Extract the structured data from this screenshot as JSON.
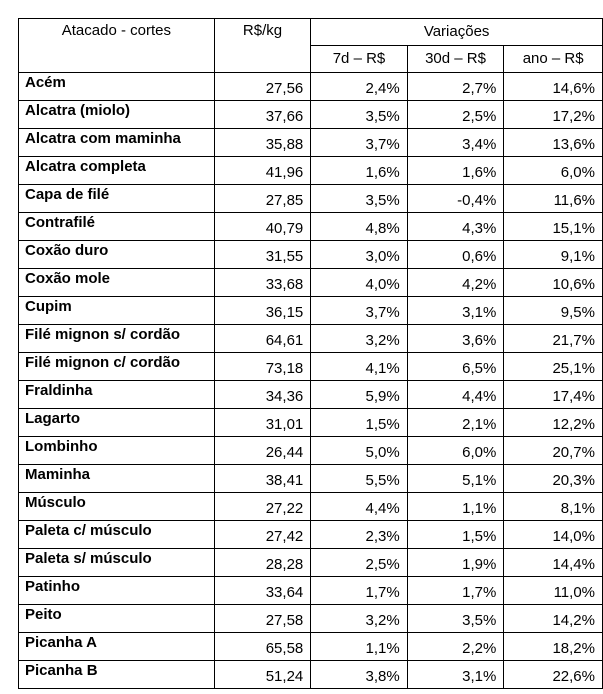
{
  "table": {
    "header": {
      "cut": "Atacado - cortes",
      "price": "R$/kg",
      "variations": "Variações",
      "sub": [
        "7d – R$",
        "30d – R$",
        "ano – R$"
      ]
    },
    "rows": [
      {
        "name": "Acém",
        "price": "27,56",
        "d7": "2,4%",
        "d30": "2,7%",
        "year": "14,6%"
      },
      {
        "name": "Alcatra (miolo)",
        "price": "37,66",
        "d7": "3,5%",
        "d30": "2,5%",
        "year": "17,2%"
      },
      {
        "name": "Alcatra com maminha",
        "price": "35,88",
        "d7": "3,7%",
        "d30": "3,4%",
        "year": "13,6%"
      },
      {
        "name": "Alcatra completa",
        "price": "41,96",
        "d7": "1,6%",
        "d30": "1,6%",
        "year": "6,0%"
      },
      {
        "name": "Capa de filé",
        "price": "27,85",
        "d7": "3,5%",
        "d30": "-0,4%",
        "year": "11,6%"
      },
      {
        "name": "Contrafilé",
        "price": "40,79",
        "d7": "4,8%",
        "d30": "4,3%",
        "year": "15,1%"
      },
      {
        "name": "Coxão duro",
        "price": "31,55",
        "d7": "3,0%",
        "d30": "0,6%",
        "year": "9,1%"
      },
      {
        "name": "Coxão mole",
        "price": "33,68",
        "d7": "4,0%",
        "d30": "4,2%",
        "year": "10,6%"
      },
      {
        "name": "Cupim",
        "price": "36,15",
        "d7": "3,7%",
        "d30": "3,1%",
        "year": "9,5%"
      },
      {
        "name": "Filé mignon s/ cordão",
        "price": "64,61",
        "d7": "3,2%",
        "d30": "3,6%",
        "year": "21,7%"
      },
      {
        "name": "Filé mignon c/ cordão",
        "price": "73,18",
        "d7": "4,1%",
        "d30": "6,5%",
        "year": "25,1%"
      },
      {
        "name": "Fraldinha",
        "price": "34,36",
        "d7": "5,9%",
        "d30": "4,4%",
        "year": "17,4%"
      },
      {
        "name": "Lagarto",
        "price": "31,01",
        "d7": "1,5%",
        "d30": "2,1%",
        "year": "12,2%"
      },
      {
        "name": "Lombinho",
        "price": "26,44",
        "d7": "5,0%",
        "d30": "6,0%",
        "year": "20,7%"
      },
      {
        "name": "Maminha",
        "price": "38,41",
        "d7": "5,5%",
        "d30": "5,1%",
        "year": "20,3%"
      },
      {
        "name": "Músculo",
        "price": "27,22",
        "d7": "4,4%",
        "d30": "1,1%",
        "year": "8,1%"
      },
      {
        "name": "Paleta c/ músculo",
        "price": "27,42",
        "d7": "2,3%",
        "d30": "1,5%",
        "year": "14,0%"
      },
      {
        "name": "Paleta s/ músculo",
        "price": "28,28",
        "d7": "2,5%",
        "d30": "1,9%",
        "year": "14,4%"
      },
      {
        "name": "Patinho",
        "price": "33,64",
        "d7": "1,7%",
        "d30": "1,7%",
        "year": "11,0%"
      },
      {
        "name": "Peito",
        "price": "27,58",
        "d7": "3,2%",
        "d30": "3,5%",
        "year": "14,2%"
      },
      {
        "name": "Picanha A",
        "price": "65,58",
        "d7": "1,1%",
        "d30": "2,2%",
        "year": "18,2%"
      },
      {
        "name": "Picanha B",
        "price": "51,24",
        "d7": "3,8%",
        "d30": "3,1%",
        "year": "22,6%"
      }
    ]
  }
}
